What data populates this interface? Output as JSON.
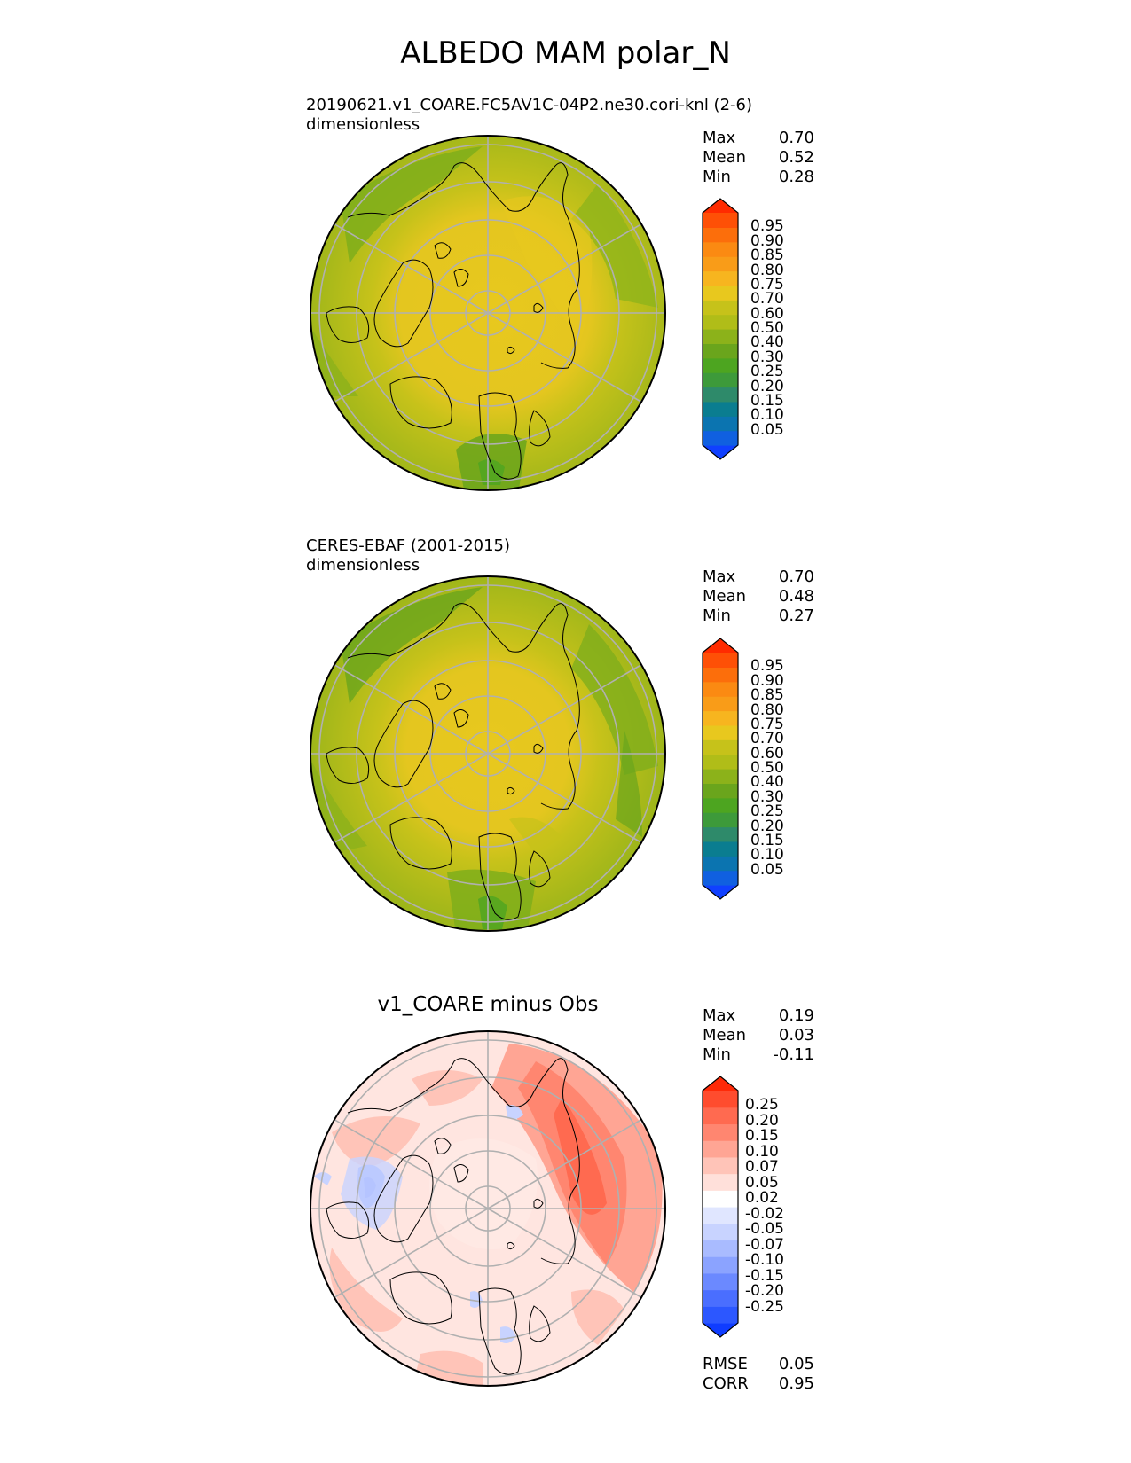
{
  "title": "ALBEDO MAM polar_N",
  "panels": [
    {
      "id": "test",
      "subtitle_line1": "20190621.v1_COARE.FC5AV1C-04P2.ne30.cori-knl (2-6)",
      "subtitle_line2": "dimensionless",
      "stats": {
        "max_label": "Max",
        "max": "0.70",
        "mean_label": "Mean",
        "mean": "0.52",
        "min_label": "Min",
        "min": "0.28"
      },
      "colorbar_levels": [
        "0.95",
        "0.90",
        "0.85",
        "0.80",
        "0.75",
        "0.70",
        "0.60",
        "0.50",
        "0.40",
        "0.30",
        "0.25",
        "0.20",
        "0.15",
        "0.10",
        "0.05"
      ]
    },
    {
      "id": "reference",
      "subtitle_line1": "CERES-EBAF (2001-2015)",
      "subtitle_line2": "dimensionless",
      "stats": {
        "max_label": "Max",
        "max": "0.70",
        "mean_label": "Mean",
        "mean": "0.48",
        "min_label": "Min",
        "min": "0.27"
      },
      "colorbar_levels": [
        "0.95",
        "0.90",
        "0.85",
        "0.80",
        "0.75",
        "0.70",
        "0.60",
        "0.50",
        "0.40",
        "0.30",
        "0.25",
        "0.20",
        "0.15",
        "0.10",
        "0.05"
      ]
    },
    {
      "id": "difference",
      "title": "v1_COARE minus Obs",
      "stats": {
        "max_label": "Max",
        "max": "0.19",
        "mean_label": "Mean",
        "mean": "0.03",
        "min_label": "Min",
        "min": "-0.11"
      },
      "colorbar_levels": [
        "0.25",
        "0.20",
        "0.15",
        "0.10",
        "0.07",
        "0.05",
        "0.02",
        "-0.02",
        "-0.05",
        "-0.07",
        "-0.10",
        "-0.15",
        "-0.20",
        "-0.25"
      ],
      "metrics": {
        "rmse_label": "RMSE",
        "rmse": "0.05",
        "corr_label": "CORR",
        "corr": "0.95"
      }
    }
  ],
  "colors": {
    "albedo_scale": [
      "#1040ff",
      "#1060e0",
      "#0b74b0",
      "#0a7d90",
      "#2e8a6a",
      "#3d9a3a",
      "#4da520",
      "#6aa51c",
      "#8cb21a",
      "#b0bd18",
      "#c6c21a",
      "#e8c81e",
      "#f7b51f",
      "#f99c18",
      "#fb8a12",
      "#fc6e0b",
      "#fe5006",
      "#ff2b00"
    ],
    "diff_scale": [
      "#0f3cff",
      "#2c57ff",
      "#4a6eff",
      "#6b89ff",
      "#8ba3ff",
      "#a9bbff",
      "#c8d3ff",
      "#e0e6ff",
      "#ffffff",
      "#ffe0da",
      "#ffc4b8",
      "#ffa594",
      "#ff8670",
      "#ff6a50",
      "#ff4c2e",
      "#ff2a08"
    ],
    "grid": "#b0b0b0",
    "coast": "#000000"
  }
}
